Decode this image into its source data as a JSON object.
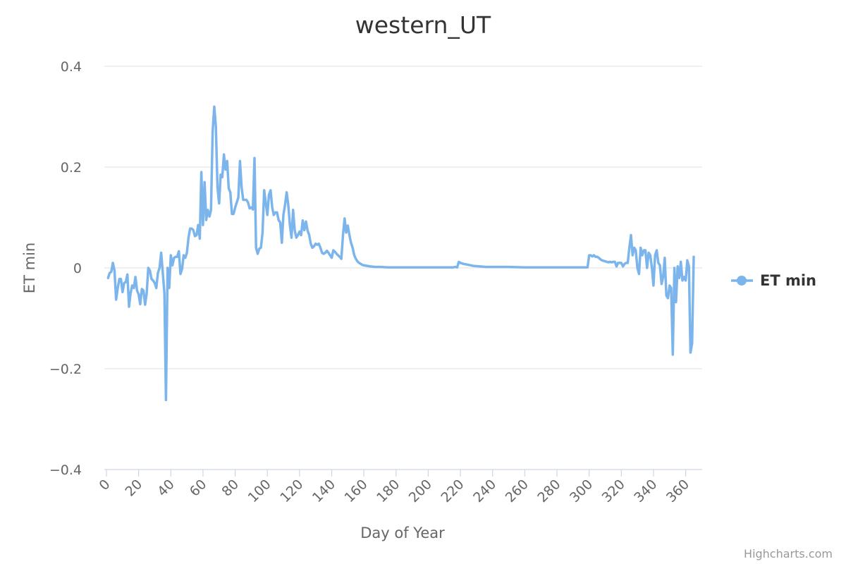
{
  "chart_data": {
    "type": "line",
    "title": "western_UT",
    "xlabel": "Day of Year",
    "ylabel": "ET min",
    "xlim": [
      0,
      366
    ],
    "ylim": [
      -0.4,
      0.4
    ],
    "x_ticks": [
      0,
      20,
      40,
      60,
      80,
      100,
      120,
      140,
      160,
      180,
      200,
      220,
      240,
      260,
      280,
      300,
      320,
      340,
      360
    ],
    "y_ticks": [
      {
        "value": 0.4,
        "label": "0.4"
      },
      {
        "value": 0.2,
        "label": "0.2"
      },
      {
        "value": 0,
        "label": "0"
      },
      {
        "value": -0.2,
        "label": "−0.2"
      },
      {
        "value": -0.4,
        "label": "−0.4"
      }
    ],
    "grid": true,
    "legend_position": "right",
    "series": [
      {
        "name": "ET min",
        "color": "#7cb5ec",
        "points": [
          [
            1,
            -0.02
          ],
          [
            2,
            -0.01
          ],
          [
            3,
            -0.008
          ],
          [
            4,
            0.01
          ],
          [
            5,
            -0.005
          ],
          [
            6,
            -0.063
          ],
          [
            7,
            -0.04
          ],
          [
            8,
            -0.022
          ],
          [
            9,
            -0.022
          ],
          [
            10,
            -0.048
          ],
          [
            11,
            -0.03
          ],
          [
            12,
            -0.028
          ],
          [
            13,
            -0.013
          ],
          [
            14,
            -0.077
          ],
          [
            15,
            -0.05
          ],
          [
            16,
            -0.035
          ],
          [
            17,
            -0.04
          ],
          [
            18,
            -0.018
          ],
          [
            19,
            -0.045
          ],
          [
            20,
            -0.052
          ],
          [
            21,
            -0.072
          ],
          [
            22,
            -0.042
          ],
          [
            23,
            -0.045
          ],
          [
            24,
            -0.073
          ],
          [
            25,
            -0.05
          ],
          [
            26,
            0.0
          ],
          [
            27,
            -0.005
          ],
          [
            28,
            -0.022
          ],
          [
            29,
            -0.025
          ],
          [
            30,
            -0.03
          ],
          [
            31,
            -0.04
          ],
          [
            32,
            -0.01
          ],
          [
            33,
            0.0
          ],
          [
            34,
            0.03
          ],
          [
            35,
            -0.01
          ],
          [
            36,
            -0.05
          ],
          [
            37,
            -0.262
          ],
          [
            38,
            0.0
          ],
          [
            39,
            -0.04
          ],
          [
            40,
            0.025
          ],
          [
            41,
            0.005
          ],
          [
            42,
            0.02
          ],
          [
            43,
            0.022
          ],
          [
            44,
            0.022
          ],
          [
            45,
            0.033
          ],
          [
            46,
            -0.012
          ],
          [
            47,
            -0.002
          ],
          [
            48,
            0.025
          ],
          [
            49,
            0.02
          ],
          [
            50,
            0.03
          ],
          [
            51,
            0.06
          ],
          [
            52,
            0.078
          ],
          [
            53,
            0.078
          ],
          [
            54,
            0.075
          ],
          [
            55,
            0.063
          ],
          [
            56,
            0.065
          ],
          [
            57,
            0.085
          ],
          [
            58,
            0.058
          ],
          [
            59,
            0.19
          ],
          [
            60,
            0.085
          ],
          [
            61,
            0.17
          ],
          [
            62,
            0.095
          ],
          [
            63,
            0.115
          ],
          [
            64,
            0.102
          ],
          [
            65,
            0.115
          ],
          [
            66,
            0.27
          ],
          [
            67,
            0.32
          ],
          [
            68,
            0.28
          ],
          [
            69,
            0.16
          ],
          [
            70,
            0.128
          ],
          [
            71,
            0.185
          ],
          [
            72,
            0.18
          ],
          [
            73,
            0.225
          ],
          [
            74,
            0.195
          ],
          [
            75,
            0.212
          ],
          [
            76,
            0.158
          ],
          [
            77,
            0.15
          ],
          [
            78,
            0.107
          ],
          [
            79,
            0.107
          ],
          [
            80,
            0.12
          ],
          [
            81,
            0.13
          ],
          [
            82,
            0.14
          ],
          [
            83,
            0.212
          ],
          [
            84,
            0.16
          ],
          [
            85,
            0.135
          ],
          [
            86,
            0.135
          ],
          [
            87,
            0.135
          ],
          [
            88,
            0.13
          ],
          [
            89,
            0.118
          ],
          [
            90,
            0.12
          ],
          [
            91,
            0.116
          ],
          [
            92,
            0.218
          ],
          [
            93,
            0.04
          ],
          [
            94,
            0.028
          ],
          [
            95,
            0.038
          ],
          [
            96,
            0.04
          ],
          [
            97,
            0.07
          ],
          [
            98,
            0.154
          ],
          [
            99,
            0.13
          ],
          [
            100,
            0.105
          ],
          [
            101,
            0.145
          ],
          [
            102,
            0.154
          ],
          [
            103,
            0.12
          ],
          [
            104,
            0.105
          ],
          [
            105,
            0.11
          ],
          [
            106,
            0.11
          ],
          [
            107,
            0.095
          ],
          [
            108,
            0.09
          ],
          [
            109,
            0.05
          ],
          [
            110,
            0.105
          ],
          [
            111,
            0.125
          ],
          [
            112,
            0.15
          ],
          [
            113,
            0.125
          ],
          [
            114,
            0.085
          ],
          [
            115,
            0.06
          ],
          [
            116,
            0.115
          ],
          [
            117,
            0.075
          ],
          [
            118,
            0.06
          ],
          [
            119,
            0.065
          ],
          [
            120,
            0.072
          ],
          [
            121,
            0.065
          ],
          [
            122,
            0.094
          ],
          [
            123,
            0.075
          ],
          [
            124,
            0.092
          ],
          [
            125,
            0.074
          ],
          [
            126,
            0.065
          ],
          [
            127,
            0.048
          ],
          [
            128,
            0.04
          ],
          [
            129,
            0.043
          ],
          [
            130,
            0.048
          ],
          [
            131,
            0.046
          ],
          [
            132,
            0.048
          ],
          [
            133,
            0.04
          ],
          [
            134,
            0.03
          ],
          [
            135,
            0.028
          ],
          [
            136,
            0.03
          ],
          [
            137,
            0.034
          ],
          [
            138,
            0.03
          ],
          [
            139,
            0.025
          ],
          [
            140,
            0.02
          ],
          [
            141,
            0.035
          ],
          [
            142,
            0.032
          ],
          [
            143,
            0.028
          ],
          [
            144,
            0.025
          ],
          [
            145,
            0.022
          ],
          [
            146,
            0.018
          ],
          [
            147,
            0.065
          ],
          [
            148,
            0.098
          ],
          [
            149,
            0.07
          ],
          [
            150,
            0.084
          ],
          [
            151,
            0.065
          ],
          [
            152,
            0.05
          ],
          [
            153,
            0.04
          ],
          [
            154,
            0.025
          ],
          [
            155,
            0.018
          ],
          [
            156,
            0.013
          ],
          [
            157,
            0.01
          ],
          [
            158,
            0.008
          ],
          [
            159,
            0.006
          ],
          [
            160,
            0.005
          ],
          [
            162,
            0.004
          ],
          [
            164,
            0.003
          ],
          [
            167,
            0.002
          ],
          [
            170,
            0.002
          ],
          [
            175,
            0.001
          ],
          [
            180,
            0.001
          ],
          [
            190,
            0.001
          ],
          [
            200,
            0.001
          ],
          [
            210,
            0.001
          ],
          [
            215,
            0.001
          ],
          [
            217,
            0.002
          ],
          [
            218,
            0.001
          ],
          [
            219,
            0.012
          ],
          [
            220,
            0.01
          ],
          [
            222,
            0.008
          ],
          [
            225,
            0.006
          ],
          [
            228,
            0.004
          ],
          [
            232,
            0.003
          ],
          [
            236,
            0.002
          ],
          [
            240,
            0.002
          ],
          [
            250,
            0.002
          ],
          [
            260,
            0.001
          ],
          [
            270,
            0.001
          ],
          [
            280,
            0.001
          ],
          [
            290,
            0.001
          ],
          [
            298,
            0.001
          ],
          [
            299,
            0.001
          ],
          [
            300,
            0.025
          ],
          [
            301,
            0.025
          ],
          [
            302,
            0.023
          ],
          [
            303,
            0.025
          ],
          [
            304,
            0.022
          ],
          [
            305,
            0.022
          ],
          [
            306,
            0.02
          ],
          [
            307,
            0.017
          ],
          [
            308,
            0.015
          ],
          [
            309,
            0.014
          ],
          [
            310,
            0.013
          ],
          [
            311,
            0.012
          ],
          [
            312,
            0.011
          ],
          [
            313,
            0.012
          ],
          [
            314,
            0.011
          ],
          [
            315,
            0.012
          ],
          [
            316,
            0.012
          ],
          [
            317,
            0.003
          ],
          [
            318,
            0.01
          ],
          [
            319,
            0.01
          ],
          [
            320,
            0.01
          ],
          [
            321,
            0.003
          ],
          [
            322,
            0.008
          ],
          [
            323,
            0.01
          ],
          [
            324,
            0.01
          ],
          [
            325,
            0.04
          ],
          [
            326,
            0.065
          ],
          [
            327,
            0.025
          ],
          [
            328,
            0.04
          ],
          [
            329,
            0.035
          ],
          [
            330,
            0.0
          ],
          [
            331,
            -0.012
          ],
          [
            332,
            0.04
          ],
          [
            333,
            0.025
          ],
          [
            334,
            0.035
          ],
          [
            335,
            0.035
          ],
          [
            336,
            0.0
          ],
          [
            337,
            0.03
          ],
          [
            338,
            0.025
          ],
          [
            339,
            0.0
          ],
          [
            340,
            -0.035
          ],
          [
            341,
            0.025
          ],
          [
            342,
            0.035
          ],
          [
            343,
            0.01
          ],
          [
            344,
            0.005
          ],
          [
            345,
            -0.032
          ],
          [
            346,
            -0.018
          ],
          [
            347,
            0.02
          ],
          [
            348,
            -0.055
          ],
          [
            349,
            -0.06
          ],
          [
            350,
            -0.035
          ],
          [
            351,
            -0.04
          ],
          [
            352,
            -0.172
          ],
          [
            353,
            0.0
          ],
          [
            354,
            -0.068
          ],
          [
            355,
            0.003
          ],
          [
            356,
            -0.02
          ],
          [
            357,
            0.012
          ],
          [
            358,
            -0.025
          ],
          [
            359,
            -0.018
          ],
          [
            360,
            -0.025
          ],
          [
            361,
            0.015
          ],
          [
            362,
            0.003
          ],
          [
            363,
            -0.168
          ],
          [
            364,
            -0.15
          ],
          [
            365,
            0.022
          ]
        ]
      }
    ]
  },
  "legend": {
    "label": "ET min"
  },
  "credits": {
    "text": "Highcharts.com"
  }
}
